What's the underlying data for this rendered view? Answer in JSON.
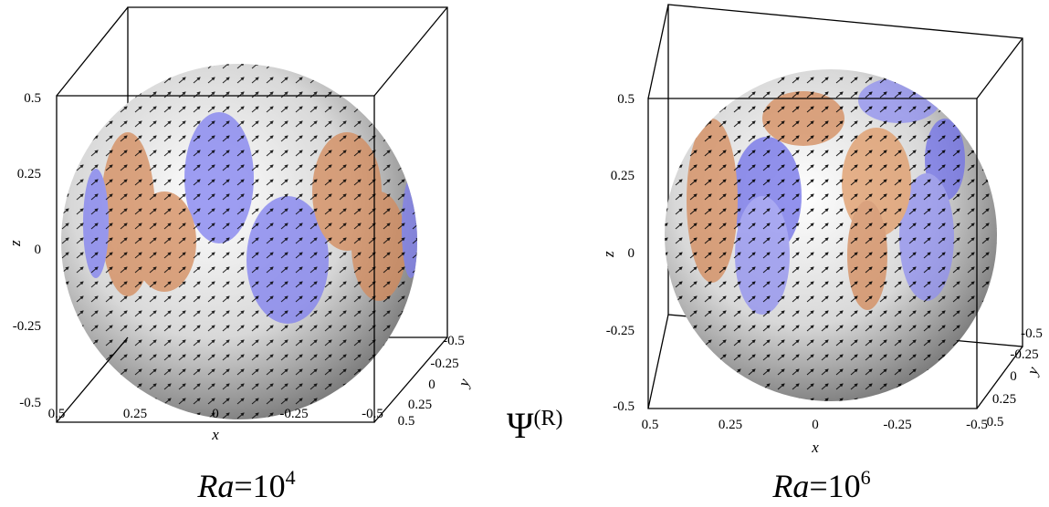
{
  "panels": [
    {
      "z_axis": {
        "label": "z",
        "ticks": [
          "0.5",
          "0.25",
          "0",
          "-0.25",
          "-0.5"
        ]
      },
      "x_axis": {
        "label": "x",
        "ticks": [
          "0.5",
          "0.25",
          "0",
          "-0.25",
          "-0.5"
        ]
      },
      "y_axis": {
        "label": "y",
        "ticks": [
          "-0.5",
          "-0.25",
          "0",
          "0.25",
          "0.5"
        ]
      },
      "caption": {
        "variable": "Ra",
        "base": "=10",
        "exponent": "4"
      }
    },
    {
      "z_axis": {
        "label": "z",
        "ticks": [
          "0.5",
          "0.25",
          "0",
          "-0.25",
          "-0.5"
        ]
      },
      "x_axis": {
        "label": "x",
        "ticks": [
          "0.5",
          "0.25",
          "0",
          "-0.25",
          "-0.5"
        ]
      },
      "y_axis": {
        "label": "y",
        "ticks": [
          "-0.5",
          "-0.25",
          "0",
          "0.25",
          "0.5"
        ]
      },
      "caption": {
        "variable": "Ra",
        "base": "=10",
        "exponent": "6"
      }
    }
  ],
  "center_label": {
    "symbol": "Ψ",
    "superscript": "(R)"
  }
}
